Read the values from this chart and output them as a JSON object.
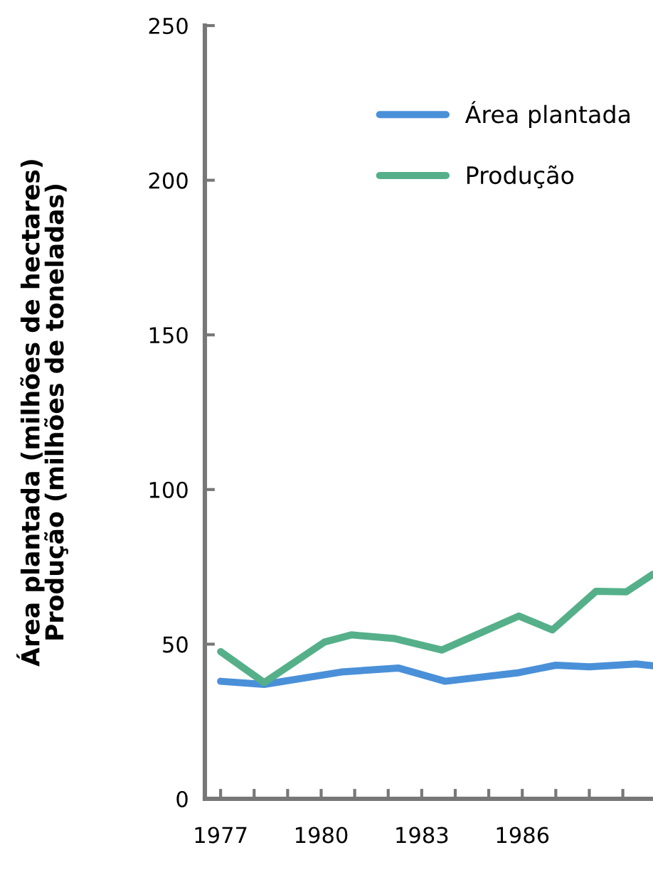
{
  "chart_data": {
    "type": "line",
    "ylabel": "Área plantada (milhões de hectares)\nProdução (milhões de toneladas)",
    "series": [
      {
        "name": "Área plantada",
        "color": "#4a90d9",
        "x": [
          1977,
          1978.3,
          1980.6,
          1982.3,
          1983.7,
          1985.9,
          1987,
          1988,
          1989.4,
          1989.9
        ],
        "values": [
          38,
          37,
          41,
          42.3,
          38,
          40.8,
          43.2,
          42.7,
          43.6,
          43
        ]
      },
      {
        "name": "Produção",
        "color": "#55b08a",
        "x": [
          1977,
          1978.3,
          1980.1,
          1980.9,
          1982.2,
          1983.6,
          1985.9,
          1986.9,
          1988.2,
          1989.1,
          1989.9
        ],
        "values": [
          47.6,
          37.6,
          50.7,
          53,
          51.8,
          48.1,
          59.1,
          54.6,
          67.1,
          66.9,
          72.6
        ]
      }
    ],
    "xlim": [
      1976.53,
      1989.9
    ],
    "xticks": [
      1977,
      {
        "value": 1978,
        "label": null
      },
      {
        "value": 1979,
        "label": null
      },
      1980,
      {
        "value": 1981,
        "label": null
      },
      {
        "value": 1982,
        "label": null
      },
      1983,
      {
        "value": 1984,
        "label": null
      },
      {
        "value": 1985,
        "label": null
      },
      1986,
      {
        "value": 1987,
        "label": null
      },
      {
        "value": 1988,
        "label": null
      },
      {
        "value": 1989,
        "label": null
      }
    ],
    "ylim": [
      0,
      250
    ],
    "yticks": [
      0,
      50,
      100,
      150,
      200,
      250
    ],
    "grid": false,
    "legend": "top right",
    "marker": "none",
    "line_style": "solid"
  }
}
